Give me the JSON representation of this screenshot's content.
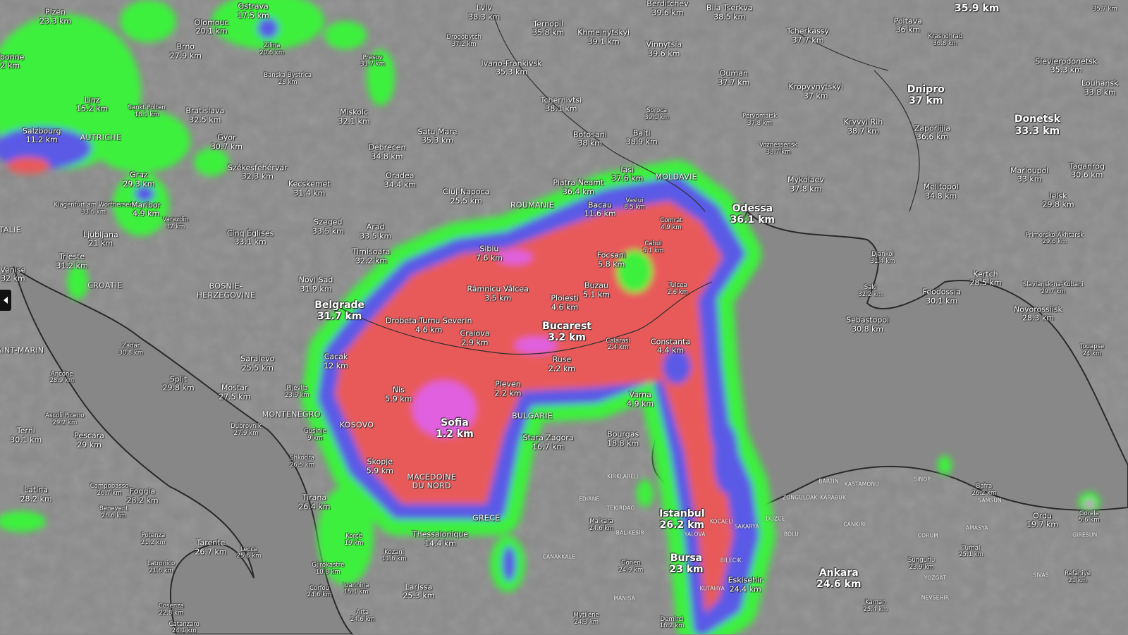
{
  "map": {
    "layer": "visibility",
    "unit": "km",
    "colors": {
      "base": "#8b8b8b",
      "low": "#e85a5a",
      "very_low": "#e060e0",
      "medium": "#5a5ae6",
      "moderate": "#3cf03c"
    },
    "cities": [
      {
        "name": "Plzen",
        "value": "23.3 km"
      },
      {
        "name": "Ostrava",
        "value": "17.5 km"
      },
      {
        "name": "Olomouc",
        "value": "20.1 km"
      },
      {
        "name": "Brno",
        "value": "27.9 km"
      },
      {
        "name": "Zilina",
        "value": "20.6 km"
      },
      {
        "name": "Presov",
        "value": "31.7 km"
      },
      {
        "name": "Banska Bystrica",
        "value": "28 km"
      },
      {
        "name": "sbonne",
        "value": "2 km"
      },
      {
        "name": "Linz",
        "value": "15.2 km"
      },
      {
        "name": "Sankt Polten",
        "value": "18.1 km"
      },
      {
        "name": "Bratislava",
        "value": "32.5 km"
      },
      {
        "name": "Salzbourg",
        "value": "11.2 km"
      },
      {
        "name": "Gyor",
        "value": "30.7 km"
      },
      {
        "name": "Miskolc",
        "value": "32.1 km"
      },
      {
        "name": "Debrecen",
        "value": "34.8 km"
      },
      {
        "name": "Satu Mare",
        "value": "35.3 km"
      },
      {
        "name": "Székesfehérvar",
        "value": "32.3 km"
      },
      {
        "name": "Graz",
        "value": "29.3 km"
      },
      {
        "name": "Kecskemet",
        "value": "31.4 km"
      },
      {
        "name": "Oradea",
        "value": "34.4 km"
      },
      {
        "name": "Cluj-Napoca",
        "value": "25.5 km"
      },
      {
        "name": "Klagenfurt am Worthersee",
        "value": "33.6 km"
      },
      {
        "name": "Maribor",
        "value": "4.9 km"
      },
      {
        "name": "Varazdin",
        "value": "32 km"
      },
      {
        "name": "Ljubljana",
        "value": "21 km"
      },
      {
        "name": "Szeged",
        "value": "33.5 km"
      },
      {
        "name": "Arad",
        "value": "33.5 km"
      },
      {
        "name": "Cinq Églises",
        "value": "33.1 km"
      },
      {
        "name": "Timisoara",
        "value": "32.2 km"
      },
      {
        "name": "Trieste",
        "value": "31.2 km"
      },
      {
        "name": "Venise",
        "value": "32 km"
      },
      {
        "name": "Novi Sad",
        "value": "31.9 km"
      },
      {
        "name": "Belgrade",
        "value": "31.7 km"
      },
      {
        "name": "Zadar",
        "value": "30.8 km"
      },
      {
        "name": "Ancône",
        "value": "28.9 km"
      },
      {
        "name": "Sarajevo",
        "value": "25.5 km"
      },
      {
        "name": "Split",
        "value": "29.8 km"
      },
      {
        "name": "Mostar",
        "value": "27.5 km"
      },
      {
        "name": "Pljevlja",
        "value": "23.9 km"
      },
      {
        "name": "Ascoli Piceno",
        "value": "29.2 km"
      },
      {
        "name": "Terni",
        "value": "30.1 km"
      },
      {
        "name": "Pescara",
        "value": "29 km"
      },
      {
        "name": "Dubrovnik",
        "value": "27.9 km"
      },
      {
        "name": "Gusinje",
        "value": "9 km"
      },
      {
        "name": "Shkodra",
        "value": "26.5 km"
      },
      {
        "name": "Skopje",
        "value": "5.9 km"
      },
      {
        "name": "Latina",
        "value": "28.2 km"
      },
      {
        "name": "Campobasso",
        "value": "26.7 km"
      },
      {
        "name": "Foggia",
        "value": "28.2 km"
      },
      {
        "name": "Benevent",
        "value": "26.6 km"
      },
      {
        "name": "Tirana",
        "value": "26.4 km"
      },
      {
        "name": "Potenza",
        "value": "21.2 km"
      },
      {
        "name": "Tarente",
        "value": "26.7 km"
      },
      {
        "name": "Lecce",
        "value": "25.6 km"
      },
      {
        "name": "Korçë",
        "value": "19 km"
      },
      {
        "name": "Kozani",
        "value": "11.6 km"
      },
      {
        "name": "Latronico",
        "value": "21.6 km"
      },
      {
        "name": "Gjirokastre",
        "value": "10.8 km"
      },
      {
        "name": "Corfou",
        "value": "24.6 km"
      },
      {
        "name": "Ioannina",
        "value": "15.1 km"
      },
      {
        "name": "Cosenza",
        "value": "22.8 km"
      },
      {
        "name": "Catanzaro",
        "value": "24.1 km"
      },
      {
        "name": "Arta",
        "value": "24.6 km"
      },
      {
        "name": "Larissa",
        "value": "25.3 km"
      },
      {
        "name": "Thessalonique",
        "value": "14.4 km"
      },
      {
        "name": "Sofia",
        "value": "1.2 km"
      },
      {
        "name": "Stara Zagora",
        "value": "16.7 km"
      },
      {
        "name": "Bourgas",
        "value": "18.8 km"
      },
      {
        "name": "Varna",
        "value": "4.9 km"
      },
      {
        "name": "Pleven",
        "value": "2.2 km"
      },
      {
        "name": "Nis",
        "value": "5.9 km"
      },
      {
        "name": "Cacak",
        "value": "12 km"
      },
      {
        "name": "Drobeta-Turnu Severin",
        "value": "4.6 km"
      },
      {
        "name": "Craiova",
        "value": "2.9 km"
      },
      {
        "name": "Râmnicu Vâlcea",
        "value": "3.5 km"
      },
      {
        "name": "Sibiu",
        "value": "7.6 km"
      },
      {
        "name": "Bucarest",
        "value": "3.2 km"
      },
      {
        "name": "Ruse",
        "value": "2.2 km"
      },
      {
        "name": "Calarasi",
        "value": "2.4 km"
      },
      {
        "name": "Constanta",
        "value": "4.4 km"
      },
      {
        "name": "Ploiesti",
        "value": "4.6 km"
      },
      {
        "name": "Buzau",
        "value": "5.1 km"
      },
      {
        "name": "Focsani",
        "value": "5.8 km"
      },
      {
        "name": "Tulcea",
        "value": "2.6 km"
      },
      {
        "name": "Cahul",
        "value": "5.1 km"
      },
      {
        "name": "Comrat",
        "value": "4.9 km"
      },
      {
        "name": "Bacau",
        "value": "11.6 km"
      },
      {
        "name": "Vaslui",
        "value": "8.5 km"
      },
      {
        "name": "Piatra Neamt",
        "value": "36.4 km"
      },
      {
        "name": "Iasi",
        "value": "37.6 km"
      },
      {
        "name": "Botosani",
        "value": "38 km"
      },
      {
        "name": "Balti",
        "value": "38.9 km"
      },
      {
        "name": "Soroca",
        "value": "39.1 km"
      },
      {
        "name": "Tchernivtsi",
        "value": "38.1 km"
      },
      {
        "name": "Ivano-Frankivsk",
        "value": "35.3 km"
      },
      {
        "name": "Drogobytch",
        "value": "37.2 km"
      },
      {
        "name": "Lviv",
        "value": "38.3 km"
      },
      {
        "name": "Ternopil",
        "value": "35.8 km"
      },
      {
        "name": "Khmelnytskyi",
        "value": "39.1 km"
      },
      {
        "name": "Berditchev",
        "value": "39.6 km"
      },
      {
        "name": "Vinnytsia",
        "value": "39.6 km"
      },
      {
        "name": "Bila Tserkva",
        "value": "38.5 km"
      },
      {
        "name": "Ouman",
        "value": "37.7 km"
      },
      {
        "name": "Tcherkassy",
        "value": "37.7 km"
      },
      {
        "name": "Poltava",
        "value": "36 km"
      },
      {
        "name": "Krasnohrad",
        "value": "36.8 km"
      },
      {
        "name": "",
        "value": "35.9 km"
      },
      {
        "name": "",
        "value": "35.7 km"
      },
      {
        "name": "Sievierodonetsk",
        "value": "35.3 km"
      },
      {
        "name": "Louhansk",
        "value": "33.8 km"
      },
      {
        "name": "Kropyvnytskyi",
        "value": "37 km"
      },
      {
        "name": "Dnipro",
        "value": "37 km"
      },
      {
        "name": "Pervomaisk",
        "value": "37.8 km"
      },
      {
        "name": "Kryvyi Rih",
        "value": "38.7 km"
      },
      {
        "name": "Zaporijjia",
        "value": "36.6 km"
      },
      {
        "name": "Donetsk",
        "value": "33.3 km"
      },
      {
        "name": "Voznessensk",
        "value": "38.7 km"
      },
      {
        "name": "Mykolaev",
        "value": "37.8 km"
      },
      {
        "name": "Melitopol",
        "value": "34.8 km"
      },
      {
        "name": "Marioupol",
        "value": "33 km"
      },
      {
        "name": "Taganrog",
        "value": "30.6 km"
      },
      {
        "name": "Ieisk",
        "value": "29.8 km"
      },
      {
        "name": "Odessa",
        "value": "36.1 km"
      },
      {
        "name": "Primorsko-Akhtarsk",
        "value": "29.6 km"
      },
      {
        "name": "Djankoi",
        "value": "31.4 km"
      },
      {
        "name": "Kertch",
        "value": "28.5 km"
      },
      {
        "name": "Saki",
        "value": "32.2 km"
      },
      {
        "name": "Slaviansk-na-Kubani",
        "value": "29.7 km"
      },
      {
        "name": "Feodossia",
        "value": "30.1 km"
      },
      {
        "name": "Novorossiisk",
        "value": "28.3 km"
      },
      {
        "name": "Sebastopol",
        "value": "30.8 km"
      },
      {
        "name": "Touapse",
        "value": "24 km"
      },
      {
        "name": "Istanbul",
        "value": "26.2 km"
      },
      {
        "name": "Bursa",
        "value": "23 km"
      },
      {
        "name": "Ankara",
        "value": "24.6 km"
      },
      {
        "name": "Eskisehir",
        "value": "24.4 km"
      },
      {
        "name": "Ordu",
        "value": "19.7 km"
      },
      {
        "name": "Gorele",
        "value": "5.6 km"
      },
      {
        "name": "Bafra",
        "value": "26.2 km"
      },
      {
        "name": "Turhal",
        "value": "25.1 km"
      },
      {
        "name": "Sungurlu",
        "value": "23.9 km"
      },
      {
        "name": "Kaman",
        "value": "25.4 km"
      },
      {
        "name": "Refahiye",
        "value": "21 km"
      },
      {
        "name": "Malkara",
        "value": "24.6 km"
      },
      {
        "name": "Gönen",
        "value": "24.9 km"
      },
      {
        "name": "Mytilene",
        "value": "24.3 km"
      },
      {
        "name": "Demirci",
        "value": "16.2 km"
      }
    ],
    "countries": [
      "AUTRICHE",
      "TALIE",
      "CROATIE",
      "BOSNIE-\nHERZEGOVINE",
      "AINT-MARIN",
      "MONTENEGRO",
      "KOSOVO",
      "MACEDOINE\nDU NORD",
      "GRECE",
      "BULGARIE",
      "ROUMANIE",
      "MOLDAVIE"
    ],
    "provinces": [
      "KIRKLARELI",
      "EDIRNE",
      "TEKIRDAG",
      "BALIKESIR",
      "CANAKKALE",
      "YALOVA",
      "KOCAELI",
      "SAKARYA",
      "DUZCE",
      "BOLU",
      "BILECIK",
      "KUTAHYA",
      "MANISA",
      "ZONGULDAK",
      "KARABUK",
      "BARTIN",
      "KASTAMONU",
      "SINOP",
      "SAMSUN",
      "CANKIRI",
      "CORUM",
      "AMASYA",
      "GIRESUN",
      "YOZGAT",
      "SIVAS",
      "NEVSEHIR"
    ],
    "side_panel_toggle": "chevron-left-icon"
  }
}
